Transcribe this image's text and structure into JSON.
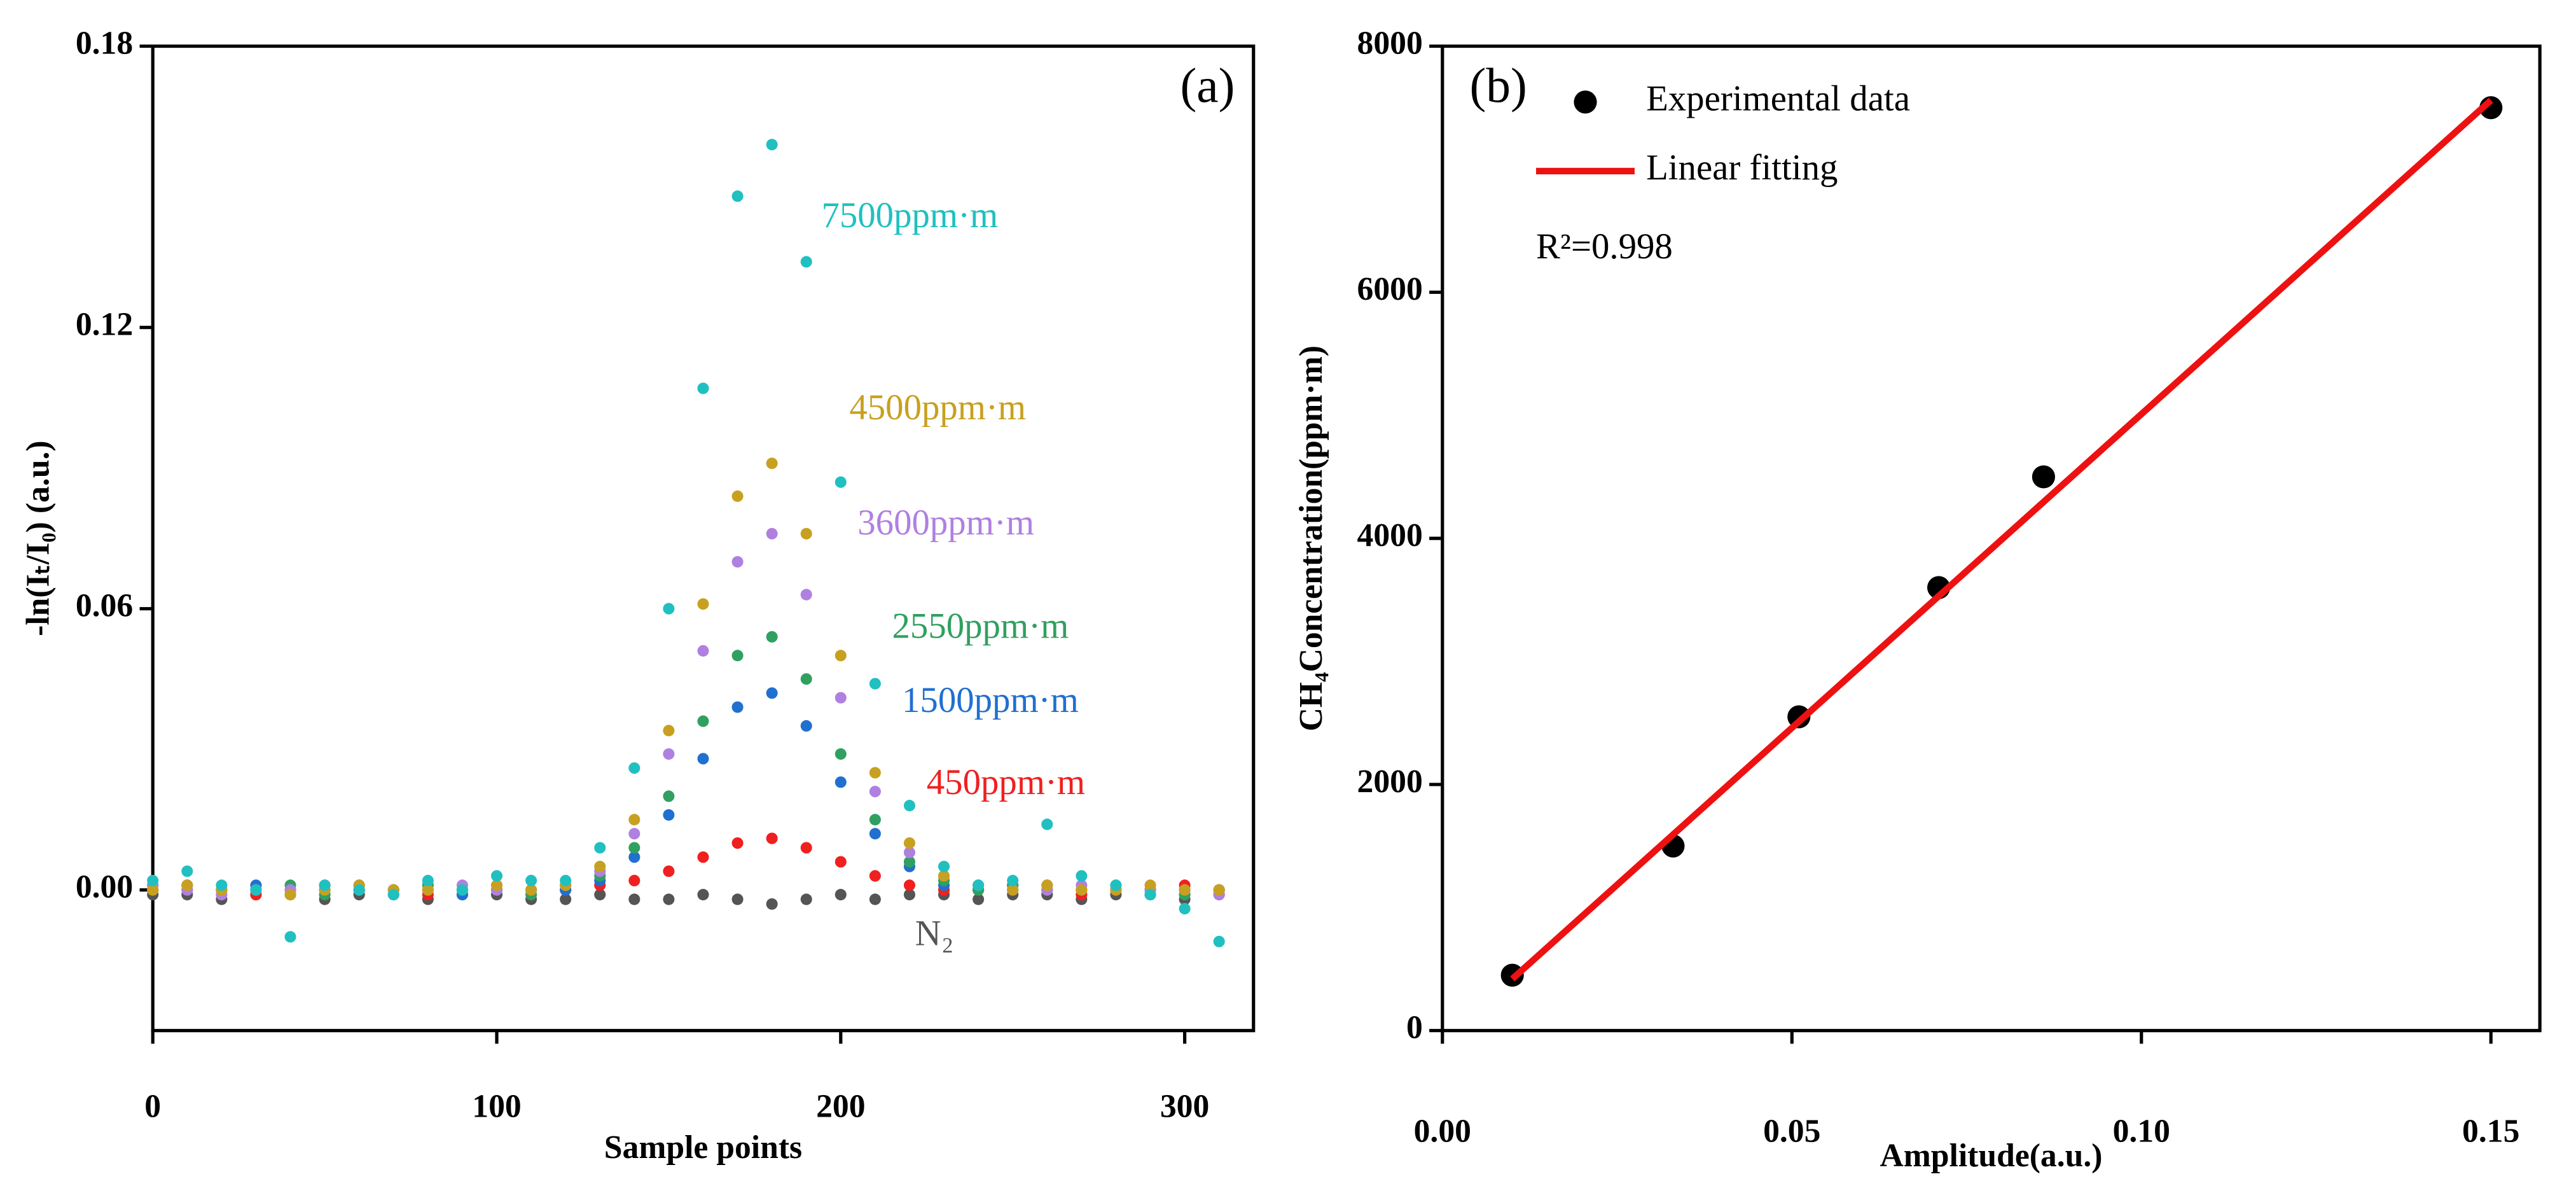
{
  "chart_data": [
    {
      "type": "scatter",
      "label": "(a)",
      "xlabel": "Sample points",
      "ylabel": "-ln(Iₜ/I₀) (a.u.)",
      "xlim": [
        0,
        320
      ],
      "xticks": [
        0,
        100,
        200,
        300
      ],
      "ylim": [
        -0.03,
        0.18
      ],
      "yticks": [
        {
          "value": 0,
          "label": "0.00"
        },
        {
          "value": 0.06,
          "label": "0.06"
        },
        {
          "value": 0.12,
          "label": "0.12"
        },
        {
          "value": 0.18,
          "label": "0.18"
        }
      ],
      "x": [
        0,
        10,
        20,
        30,
        40,
        50,
        60,
        70,
        80,
        90,
        100,
        110,
        120,
        130,
        140,
        150,
        160,
        170,
        180,
        190,
        200,
        210,
        220,
        230,
        240,
        250,
        260,
        270,
        280,
        290,
        300,
        310
      ],
      "series": [
        {
          "name": "N₂",
          "color": "#555555",
          "values": [
            -0.001,
            -0.001,
            -0.002,
            -0.001,
            -0.001,
            -0.002,
            -0.001,
            -0.001,
            -0.002,
            -0.001,
            -0.001,
            -0.002,
            -0.002,
            -0.001,
            -0.002,
            -0.002,
            -0.001,
            -0.002,
            -0.003,
            -0.002,
            -0.001,
            -0.002,
            -0.001,
            -0.001,
            -0.002,
            -0.001,
            -0.001,
            -0.002,
            -0.001,
            -0.001,
            -0.002,
            -0.001
          ]
        },
        {
          "name": "450ppm·m",
          "color": "#f02020",
          "values": [
            0.0,
            0.001,
            0.0,
            -0.001,
            0.0,
            0.001,
            0.0,
            0.0,
            -0.001,
            0.0,
            0.001,
            0.0,
            0.0,
            0.001,
            0.002,
            0.004,
            0.007,
            0.01,
            0.011,
            0.009,
            0.006,
            0.003,
            0.001,
            0.0,
            0.0,
            0.001,
            0.0,
            -0.001,
            0.0,
            0.0,
            0.001,
            0.0
          ]
        },
        {
          "name": "1500ppm·m",
          "color": "#2070d0",
          "values": [
            0.001,
            0.0,
            0.0,
            0.001,
            -0.001,
            0.0,
            0.001,
            0.0,
            0.0,
            -0.001,
            0.0,
            0.0,
            0.0,
            0.002,
            0.007,
            0.016,
            0.028,
            0.039,
            0.042,
            0.035,
            0.023,
            0.012,
            0.005,
            0.001,
            0.0,
            0.0,
            0.001,
            0.0,
            0.0,
            -0.001,
            0.0,
            0.0
          ]
        },
        {
          "name": "2550ppm·m",
          "color": "#30a060",
          "values": [
            0.0,
            0.001,
            0.0,
            0.0,
            0.001,
            -0.001,
            0.0,
            0.0,
            0.001,
            0.0,
            0.0,
            -0.001,
            0.001,
            0.003,
            0.009,
            0.02,
            0.036,
            0.05,
            0.054,
            0.045,
            0.029,
            0.015,
            0.006,
            0.002,
            0.0,
            0.001,
            0.0,
            0.0,
            0.001,
            0.0,
            -0.001,
            0.0
          ]
        },
        {
          "name": "3600ppm·m",
          "color": "#b080e0",
          "values": [
            0.001,
            0.0,
            -0.001,
            0.0,
            0.0,
            0.001,
            0.0,
            -0.001,
            0.0,
            0.001,
            0.0,
            0.0,
            0.001,
            0.004,
            0.012,
            0.029,
            0.051,
            0.07,
            0.076,
            0.063,
            0.041,
            0.021,
            0.008,
            0.003,
            0.001,
            0.0,
            0.0,
            0.001,
            0.0,
            0.0,
            0.0,
            -0.001
          ]
        },
        {
          "name": "4500ppm·m",
          "color": "#c8a020",
          "values": [
            0.0,
            0.001,
            0.0,
            0.0,
            -0.001,
            0.0,
            0.001,
            0.0,
            0.0,
            0.0,
            0.001,
            0.0,
            0.001,
            0.005,
            0.015,
            0.034,
            0.061,
            0.084,
            0.091,
            0.076,
            0.05,
            0.025,
            0.01,
            0.003,
            0.001,
            0.0,
            0.001,
            0.0,
            0.0,
            0.001,
            0.0,
            0.0
          ]
        },
        {
          "name": "7500ppm·m",
          "color": "#20c0c0",
          "values": [
            0.002,
            0.004,
            0.001,
            0.0,
            -0.01,
            0.001,
            0.0,
            -0.001,
            0.002,
            0.0,
            0.003,
            0.002,
            0.002,
            0.009,
            0.026,
            0.06,
            0.107,
            0.148,
            0.159,
            0.134,
            0.087,
            0.044,
            0.018,
            0.005,
            0.001,
            0.002,
            0.014,
            0.003,
            0.001,
            -0.001,
            -0.004,
            -0.011
          ]
        }
      ]
    },
    {
      "type": "scatter",
      "label": "(b)",
      "xlabel": "Amplitude(a.u.)",
      "ylabel": "CH₄Concentration(ppm·m)",
      "xlim": [
        0,
        0.157
      ],
      "xticks": [
        {
          "value": 0,
          "label": "0.00"
        },
        {
          "value": 0.05,
          "label": "0.05"
        },
        {
          "value": 0.1,
          "label": "0.10"
        },
        {
          "value": 0.15,
          "label": "0.15"
        }
      ],
      "ylim": [
        0,
        8000
      ],
      "yticks": [
        0,
        2000,
        4000,
        6000,
        8000
      ],
      "annotations": [
        "R²=0.998"
      ],
      "series": [
        {
          "name": "Experimental data",
          "color": "#000000",
          "style": "dot",
          "x": [
            0.01,
            0.033,
            0.051,
            0.071,
            0.086,
            0.15
          ],
          "values": [
            450,
            1500,
            2550,
            3600,
            4500,
            7500
          ]
        },
        {
          "name": "Linear fitting",
          "color": "#ee1111",
          "style": "line",
          "x": [
            0.01,
            0.15
          ],
          "values": [
            420,
            7560
          ]
        }
      ]
    }
  ]
}
